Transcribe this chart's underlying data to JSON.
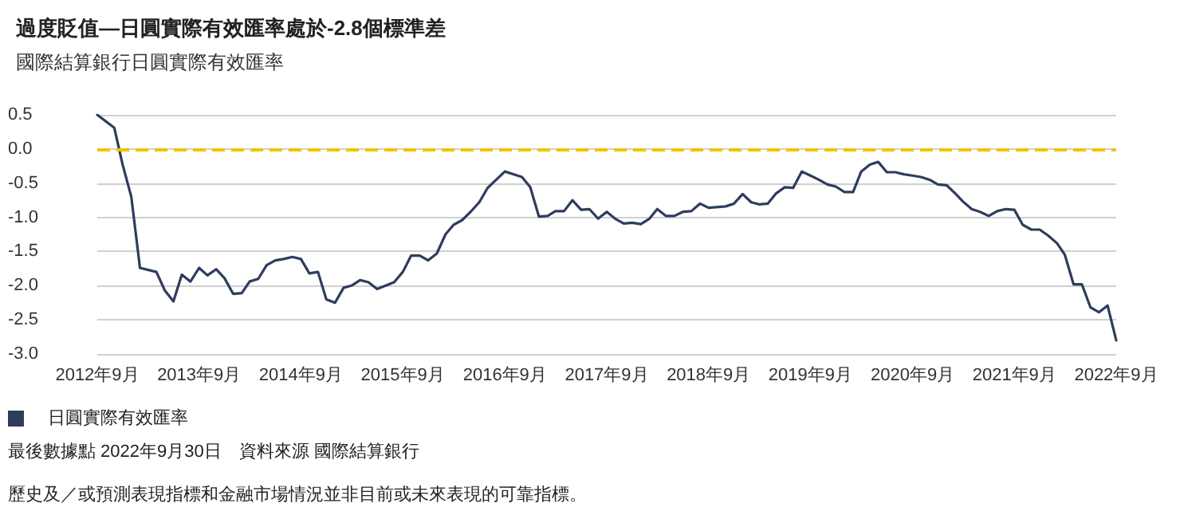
{
  "chart_data": {
    "type": "line",
    "title": "過度貶值—日圓實際有效匯率處於-2.8個標準差",
    "subtitle": "國際結算銀行日圓實際有效匯率",
    "x": [
      "2012-09",
      "2012-11",
      "2012-12",
      "2013-01",
      "2013-02",
      "2013-04",
      "2013-05",
      "2013-06",
      "2013-07",
      "2013-08",
      "2013-09",
      "2013-10",
      "2013-11",
      "2013-12",
      "2014-01",
      "2014-02",
      "2014-03",
      "2014-04",
      "2014-05",
      "2014-06",
      "2014-07",
      "2014-08",
      "2014-09",
      "2014-10",
      "2014-11",
      "2014-12",
      "2015-01",
      "2015-02",
      "2015-03",
      "2015-04",
      "2015-05",
      "2015-06",
      "2015-08",
      "2015-09",
      "2015-10",
      "2015-11",
      "2015-12",
      "2016-01",
      "2016-02",
      "2016-03",
      "2016-04",
      "2016-05",
      "2016-06",
      "2016-07",
      "2016-08",
      "2016-09",
      "2016-10",
      "2016-11",
      "2016-12",
      "2017-01",
      "2017-02",
      "2017-03",
      "2017-04",
      "2017-05",
      "2017-06",
      "2017-07",
      "2017-08",
      "2017-09",
      "2017-10",
      "2017-11",
      "2017-12",
      "2018-01",
      "2018-02",
      "2018-03",
      "2018-04",
      "2018-05",
      "2018-06",
      "2018-07",
      "2018-08",
      "2018-09",
      "2018-11",
      "2018-12",
      "2019-01",
      "2019-02",
      "2019-03",
      "2019-04",
      "2019-05",
      "2019-06",
      "2019-07",
      "2019-08",
      "2019-09",
      "2019-10",
      "2019-11",
      "2019-12",
      "2020-01",
      "2020-02",
      "2020-03",
      "2020-04",
      "2020-05",
      "2020-06",
      "2020-07",
      "2020-08",
      "2020-09",
      "2020-10",
      "2020-11",
      "2020-12",
      "2021-01",
      "2021-02",
      "2021-03",
      "2021-04",
      "2021-05",
      "2021-06",
      "2021-07",
      "2021-08",
      "2021-09",
      "2021-10",
      "2021-11",
      "2021-12",
      "2022-01",
      "2022-02",
      "2022-03",
      "2022-04",
      "2022-05",
      "2022-06",
      "2022-07",
      "2022-08",
      "2022-09"
    ],
    "series": [
      {
        "name": "日圓實際有效匯率",
        "color": "#2e3d5c",
        "values": [
          0.5,
          0.31,
          -0.23,
          -0.7,
          -1.74,
          -1.8,
          -2.07,
          -2.23,
          -1.84,
          -1.94,
          -1.74,
          -1.85,
          -1.76,
          -1.89,
          -2.12,
          -2.11,
          -1.94,
          -1.9,
          -1.7,
          -1.63,
          -1.61,
          -1.58,
          -1.61,
          -1.82,
          -1.8,
          -2.2,
          -2.25,
          -2.03,
          -2.0,
          -1.92,
          -1.95,
          -2.05,
          -1.95,
          -1.8,
          -1.56,
          -1.56,
          -1.63,
          -1.53,
          -1.25,
          -1.11,
          -1.04,
          -0.92,
          -0.78,
          -0.57,
          -0.45,
          -0.33,
          -0.37,
          -0.41,
          -0.56,
          -0.99,
          -0.98,
          -0.91,
          -0.91,
          -0.75,
          -0.89,
          -0.88,
          -1.02,
          -0.92,
          -1.02,
          -1.09,
          -1.08,
          -1.1,
          -1.02,
          -0.88,
          -0.98,
          -0.98,
          -0.92,
          -0.91,
          -0.8,
          -0.86,
          -0.84,
          -0.8,
          -0.66,
          -0.78,
          -0.81,
          -0.8,
          -0.65,
          -0.56,
          -0.57,
          -0.33,
          -0.39,
          -0.45,
          -0.52,
          -0.55,
          -0.63,
          -0.63,
          -0.33,
          -0.23,
          -0.19,
          -0.34,
          -0.34,
          -0.37,
          -0.39,
          -0.41,
          -0.45,
          -0.52,
          -0.53,
          -0.65,
          -0.77,
          -0.88,
          -0.92,
          -0.98,
          -0.91,
          -0.88,
          -0.89,
          -1.11,
          -1.18,
          -1.18,
          -1.27,
          -1.38,
          -1.55,
          -1.98,
          -1.98,
          -2.32,
          -2.39,
          -2.29,
          -2.8
        ]
      }
    ],
    "xlim": [
      "2012-09",
      "2022-09"
    ],
    "xticks": [
      {
        "value": "2012-09",
        "label": "2012年9月"
      },
      {
        "value": "2013-09",
        "label": "2013年9月"
      },
      {
        "value": "2014-09",
        "label": "2014年9月"
      },
      {
        "value": "2015-09",
        "label": "2015年9月"
      },
      {
        "value": "2016-09",
        "label": "2016年9月"
      },
      {
        "value": "2017-09",
        "label": "2017年9月"
      },
      {
        "value": "2018-09",
        "label": "2018年9月"
      },
      {
        "value": "2019-09",
        "label": "2019年9月"
      },
      {
        "value": "2020-09",
        "label": "2020年9月"
      },
      {
        "value": "2021-09",
        "label": "2021年9月"
      },
      {
        "value": "2022-09",
        "label": "2022年9月"
      }
    ],
    "ylim": [
      -3.0,
      0.5
    ],
    "yticks": [
      {
        "value": -3.0,
        "label": "-3.0"
      },
      {
        "value": -2.5,
        "label": "-2.5"
      },
      {
        "value": -2.0,
        "label": "-2.0"
      },
      {
        "value": -1.5,
        "label": "-1.5"
      },
      {
        "value": -1.0,
        "label": "-1.0"
      },
      {
        "value": -0.5,
        "label": "-0.5"
      },
      {
        "value": 0.0,
        "label": "0.0"
      },
      {
        "value": 0.5,
        "label": "0.5"
      }
    ],
    "ref_lines": [
      {
        "axis": "y",
        "value": 0,
        "color": "#f2c200",
        "line_style": "dashed"
      }
    ],
    "grid": "y",
    "legend": "bottom left",
    "marker": "none",
    "line_style": "solid",
    "annotations": [
      "最後數據點 2022年9月30日　資料來源 國際結算銀行",
      "歷史及／或預測表現指標和金融市場情況並非目前或未來表現的可靠指標。"
    ]
  }
}
